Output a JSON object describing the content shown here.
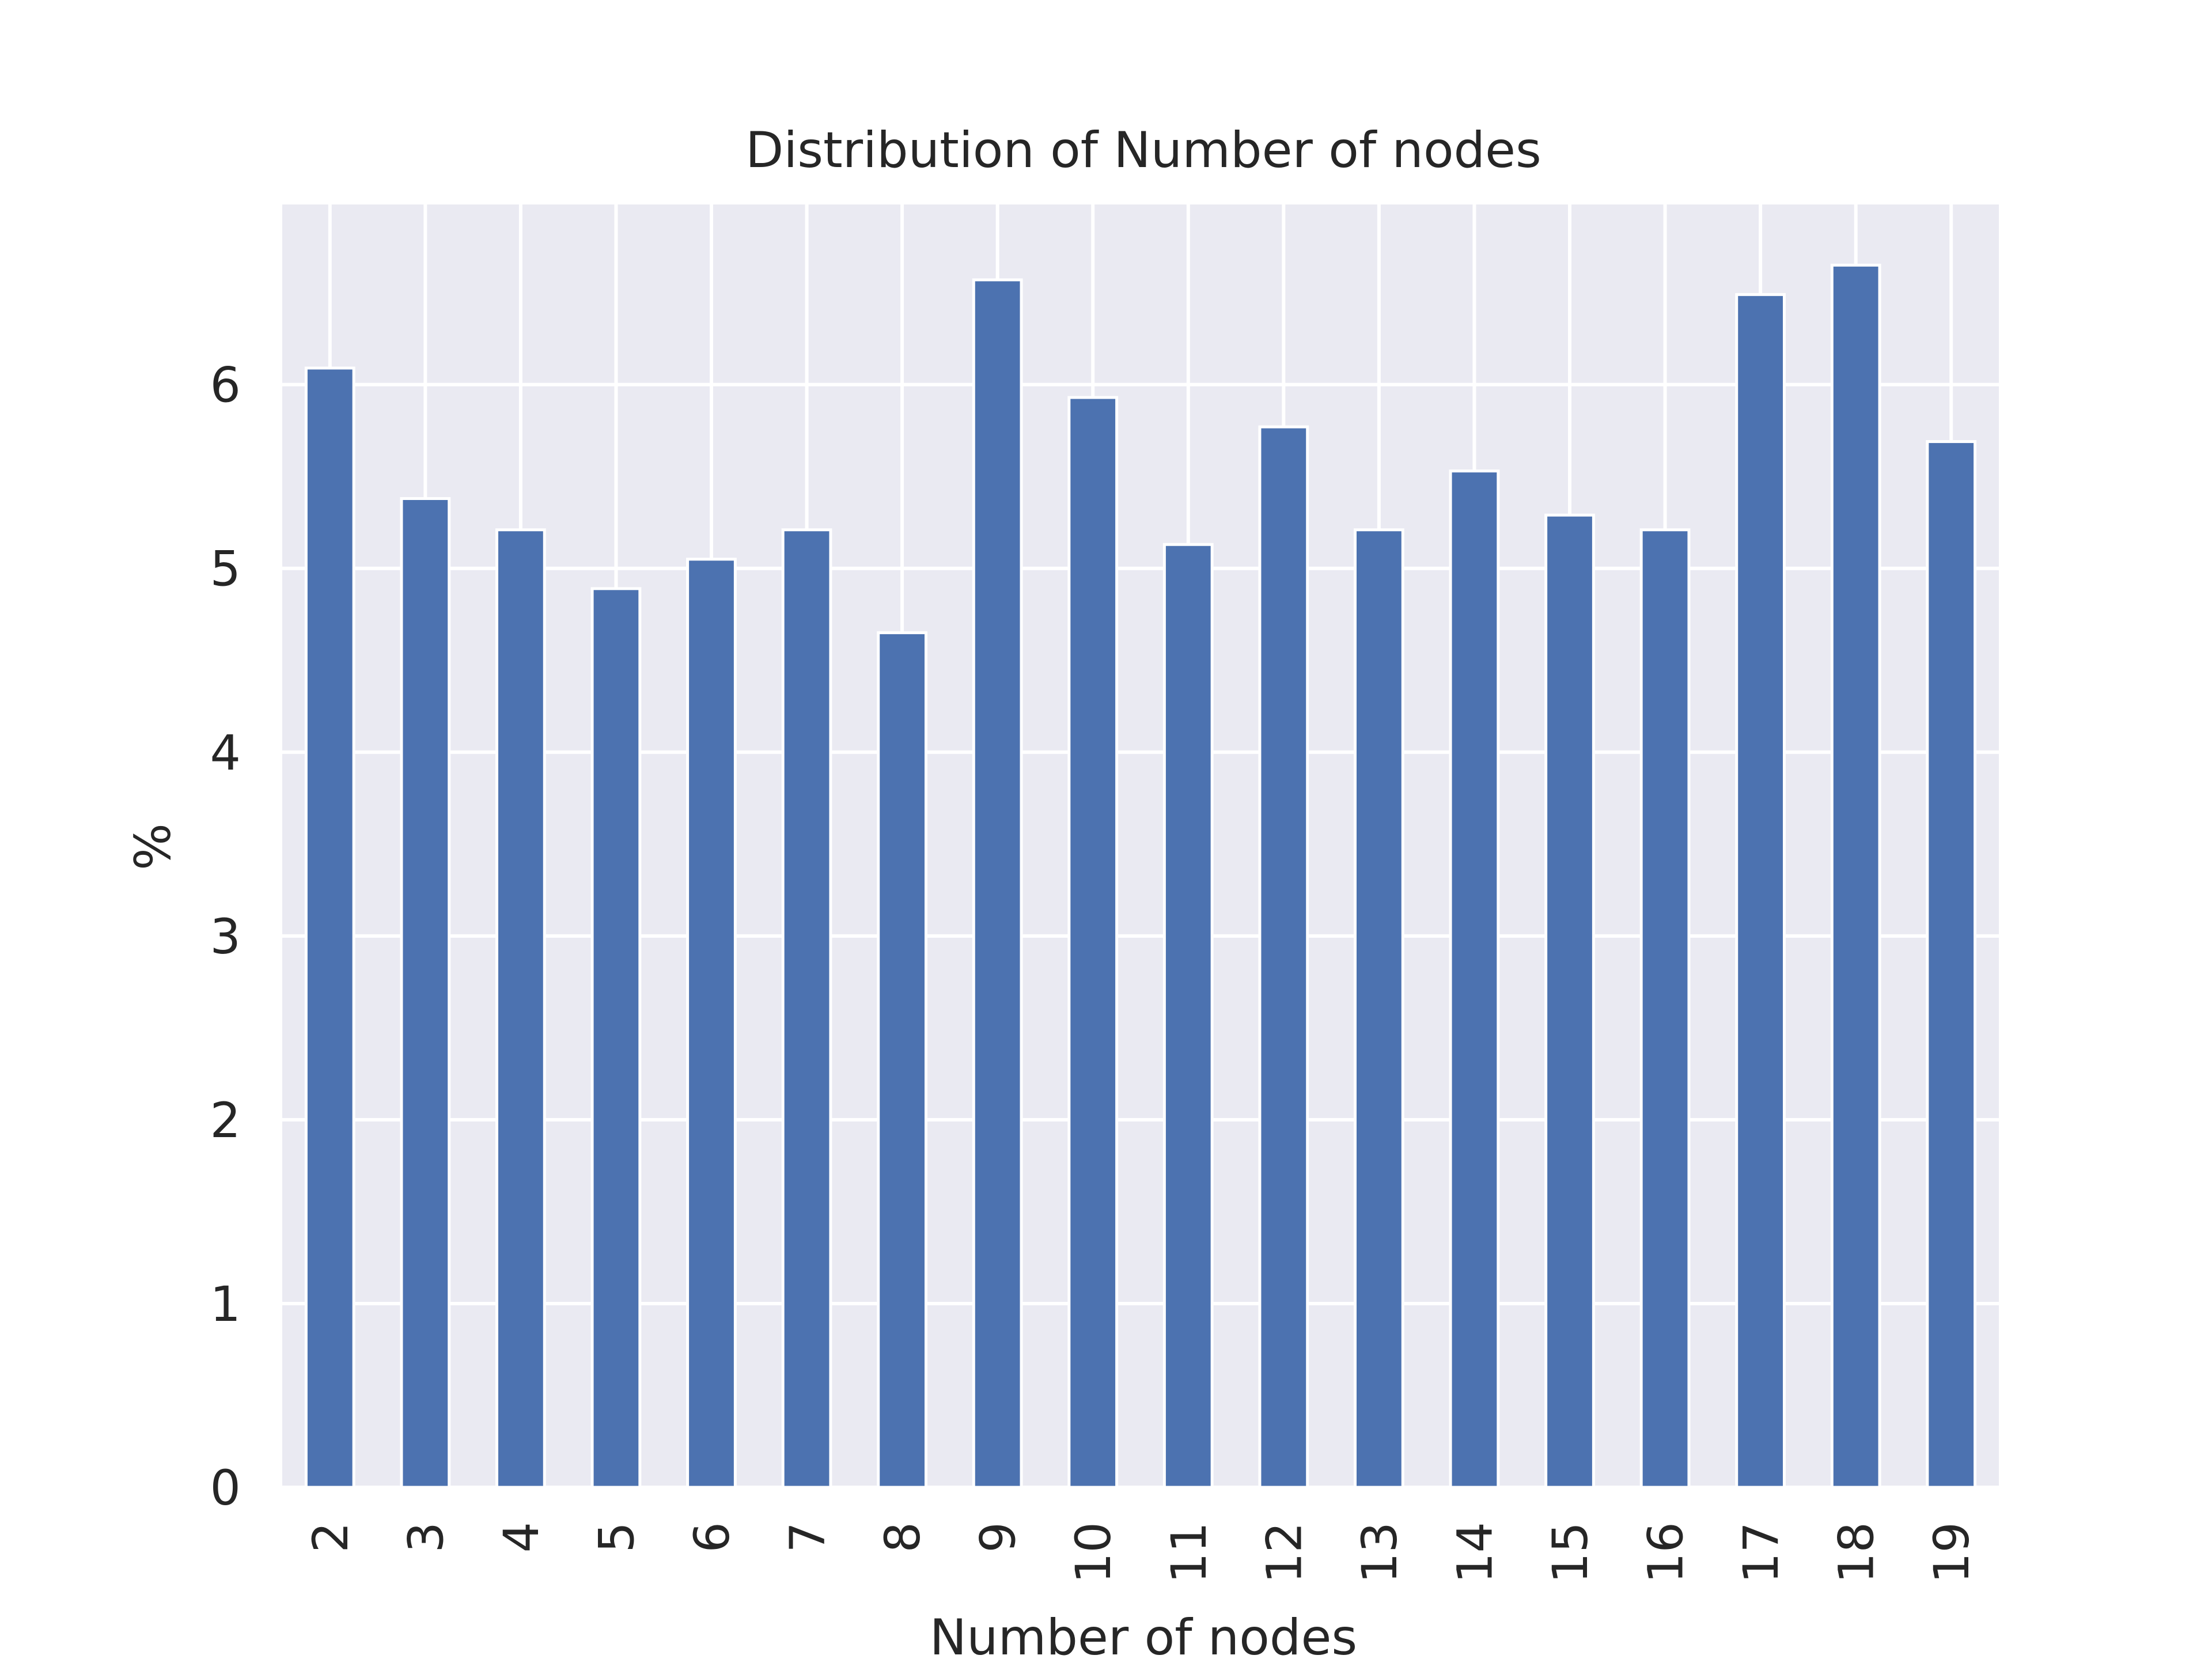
{
  "chart_data": {
    "type": "bar",
    "title": "Distribution of Number of nodes",
    "xlabel": "Number of nodes",
    "ylabel": "%",
    "categories": [
      "2",
      "3",
      "4",
      "5",
      "6",
      "7",
      "8",
      "9",
      "10",
      "11",
      "12",
      "13",
      "14",
      "15",
      "16",
      "17",
      "18",
      "19"
    ],
    "values": [
      6.09,
      5.38,
      5.21,
      4.89,
      5.05,
      5.21,
      4.65,
      6.57,
      5.93,
      5.13,
      5.77,
      5.21,
      5.53,
      5.29,
      5.21,
      6.49,
      6.65,
      5.69
    ],
    "yticks": [
      0,
      1,
      2,
      3,
      4,
      5,
      6
    ],
    "ylim": [
      0,
      6.98
    ],
    "grid": true,
    "legend": "none",
    "bar_color": "#4c72b0",
    "plot_background": "#eaeaf2",
    "grid_color": "#ffffff"
  }
}
